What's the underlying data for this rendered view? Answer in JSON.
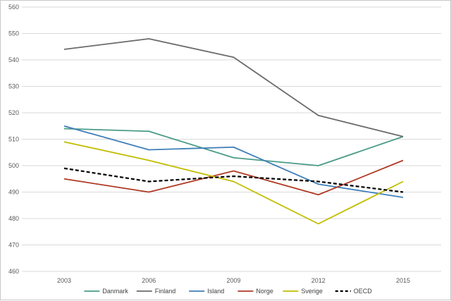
{
  "chart_data": {
    "type": "line",
    "title": "",
    "xlabel": "",
    "ylabel": "",
    "categories": [
      "2003",
      "2006",
      "2009",
      "2012",
      "2015"
    ],
    "ylim": [
      460,
      560
    ],
    "yticks": [
      460,
      470,
      480,
      490,
      500,
      510,
      520,
      530,
      540,
      550,
      560
    ],
    "grid": true,
    "legend_position": "bottom",
    "series": [
      {
        "name": "Danmark",
        "color": "#4a9c88",
        "dashed": false,
        "values": [
          514,
          513,
          503,
          500,
          511
        ]
      },
      {
        "name": "Finland",
        "color": "#6b6b6b",
        "dashed": false,
        "values": [
          544,
          548,
          541,
          519,
          511
        ]
      },
      {
        "name": "Island",
        "color": "#3f7fb8",
        "dashed": false,
        "values": [
          515,
          506,
          507,
          493,
          488
        ]
      },
      {
        "name": "Norge",
        "color": "#b03a24",
        "dashed": false,
        "values": [
          495,
          490,
          498,
          489,
          502
        ]
      },
      {
        "name": "Sverige",
        "color": "#c2bd00",
        "dashed": false,
        "values": [
          509,
          502,
          494,
          478,
          494
        ]
      },
      {
        "name": "OECD",
        "color": "#000000",
        "dashed": true,
        "values": [
          499,
          494,
          496,
          494,
          490
        ]
      }
    ]
  }
}
